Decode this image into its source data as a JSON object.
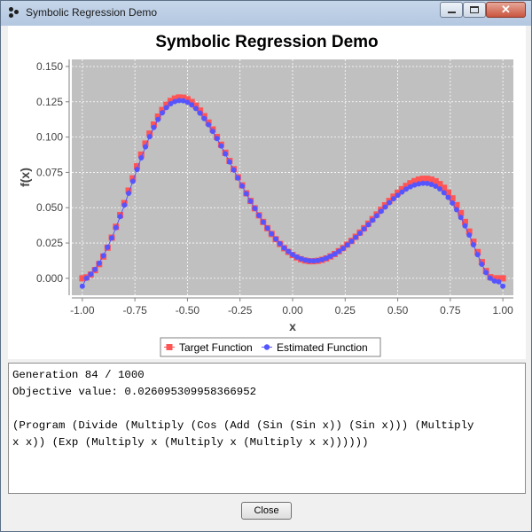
{
  "window": {
    "title": "Symbolic Regression Demo"
  },
  "chart_data": {
    "type": "scatter",
    "title": "Symbolic Regression Demo",
    "xlabel": "x",
    "ylabel": "f(x)",
    "xlim": [
      -1.05,
      1.05
    ],
    "ylim": [
      -0.012,
      0.155
    ],
    "xticks": [
      "-1.00",
      "-0.75",
      "-0.50",
      "-0.25",
      "0.00",
      "0.25",
      "0.50",
      "0.75",
      "1.00"
    ],
    "yticks": [
      "0.000",
      "0.025",
      "0.050",
      "0.075",
      "0.100",
      "0.125",
      "0.150"
    ],
    "grid": true,
    "legend_position": "bottom",
    "series": [
      {
        "name": "Target Function",
        "color": "#ff5555",
        "marker": "square",
        "x": [
          -1.0,
          -0.98,
          -0.96,
          -0.94,
          -0.92,
          -0.9,
          -0.88,
          -0.86,
          -0.84,
          -0.82,
          -0.8,
          -0.78,
          -0.76,
          -0.74,
          -0.72,
          -0.7,
          -0.68,
          -0.66,
          -0.64,
          -0.62,
          -0.6,
          -0.58,
          -0.56,
          -0.54,
          -0.52,
          -0.5,
          -0.48,
          -0.46,
          -0.44,
          -0.42,
          -0.4,
          -0.38,
          -0.36,
          -0.34,
          -0.32,
          -0.3,
          -0.28,
          -0.26,
          -0.24,
          -0.22,
          -0.2,
          -0.18,
          -0.16,
          -0.14,
          -0.12,
          -0.1,
          -0.08,
          -0.06,
          -0.04,
          -0.02,
          0.0,
          0.02,
          0.04,
          0.06,
          0.08,
          0.1,
          0.12,
          0.14,
          0.16,
          0.18,
          0.2,
          0.22,
          0.24,
          0.26,
          0.28,
          0.3,
          0.32,
          0.34,
          0.36,
          0.38,
          0.4,
          0.42,
          0.44,
          0.46,
          0.48,
          0.5,
          0.52,
          0.54,
          0.56,
          0.58,
          0.6,
          0.62,
          0.64,
          0.66,
          0.68,
          0.7,
          0.72,
          0.74,
          0.76,
          0.78,
          0.8,
          0.82,
          0.84,
          0.86,
          0.88,
          0.9,
          0.92,
          0.94,
          0.96,
          0.98,
          1.0
        ],
        "y": [
          0.0,
          0.0007,
          0.0026,
          0.0058,
          0.0101,
          0.0154,
          0.0217,
          0.0288,
          0.0365,
          0.0448,
          0.0533,
          0.0621,
          0.0708,
          0.0794,
          0.0876,
          0.0954,
          0.1025,
          0.1089,
          0.1145,
          0.1192,
          0.1229,
          0.1256,
          0.1273,
          0.1281,
          0.1279,
          0.1268,
          0.1249,
          0.1222,
          0.1188,
          0.1148,
          0.1103,
          0.1054,
          0.1001,
          0.0946,
          0.0889,
          0.0831,
          0.0773,
          0.0715,
          0.0658,
          0.0602,
          0.0548,
          0.0496,
          0.0446,
          0.0399,
          0.0355,
          0.0314,
          0.0277,
          0.0243,
          0.0213,
          0.0187,
          0.0165,
          0.0148,
          0.0135,
          0.0126,
          0.0121,
          0.0121,
          0.0124,
          0.0131,
          0.0141,
          0.0155,
          0.0172,
          0.0192,
          0.0214,
          0.0239,
          0.0265,
          0.0294,
          0.0324,
          0.0355,
          0.0387,
          0.0419,
          0.0452,
          0.0485,
          0.0517,
          0.0548,
          0.0578,
          0.0606,
          0.0631,
          0.0654,
          0.0673,
          0.0688,
          0.0699,
          0.0705,
          0.0705,
          0.0699,
          0.0687,
          0.0667,
          0.0641,
          0.0607,
          0.0566,
          0.0518,
          0.0462,
          0.0399,
          0.0331,
          0.0259,
          0.0186,
          0.0115,
          0.0052,
          0.0008,
          0.0,
          0.0,
          0.0
        ]
      },
      {
        "name": "Estimated Function",
        "color": "#5555ff",
        "marker": "circle",
        "x": [
          -1.0,
          -0.98,
          -0.96,
          -0.94,
          -0.92,
          -0.9,
          -0.88,
          -0.86,
          -0.84,
          -0.82,
          -0.8,
          -0.78,
          -0.76,
          -0.74,
          -0.72,
          -0.7,
          -0.68,
          -0.66,
          -0.64,
          -0.62,
          -0.6,
          -0.58,
          -0.56,
          -0.54,
          -0.52,
          -0.5,
          -0.48,
          -0.46,
          -0.44,
          -0.42,
          -0.4,
          -0.38,
          -0.36,
          -0.34,
          -0.32,
          -0.3,
          -0.28,
          -0.26,
          -0.24,
          -0.22,
          -0.2,
          -0.18,
          -0.16,
          -0.14,
          -0.12,
          -0.1,
          -0.08,
          -0.06,
          -0.04,
          -0.02,
          0.0,
          0.02,
          0.04,
          0.06,
          0.08,
          0.1,
          0.12,
          0.14,
          0.16,
          0.18,
          0.2,
          0.22,
          0.24,
          0.26,
          0.28,
          0.3,
          0.32,
          0.34,
          0.36,
          0.38,
          0.4,
          0.42,
          0.44,
          0.46,
          0.48,
          0.5,
          0.52,
          0.54,
          0.56,
          0.58,
          0.6,
          0.62,
          0.64,
          0.66,
          0.68,
          0.7,
          0.72,
          0.74,
          0.76,
          0.78,
          0.8,
          0.82,
          0.84,
          0.86,
          0.88,
          0.9,
          0.92,
          0.94,
          0.96,
          0.98,
          1.0
        ],
        "y": [
          -0.0056,
          0.0001,
          0.0029,
          0.0063,
          0.0107,
          0.016,
          0.022,
          0.0286,
          0.0359,
          0.0437,
          0.0518,
          0.0602,
          0.0687,
          0.0771,
          0.0853,
          0.0931,
          0.1003,
          0.1068,
          0.1125,
          0.1172,
          0.1209,
          0.1236,
          0.1252,
          0.1259,
          0.1257,
          0.1246,
          0.1228,
          0.1202,
          0.1169,
          0.1131,
          0.1088,
          0.1041,
          0.099,
          0.0937,
          0.0881,
          0.0824,
          0.0767,
          0.071,
          0.0654,
          0.0599,
          0.0546,
          0.0495,
          0.0445,
          0.0398,
          0.0355,
          0.0315,
          0.0278,
          0.0245,
          0.0215,
          0.019,
          0.0168,
          0.0151,
          0.0138,
          0.0129,
          0.0124,
          0.0123,
          0.0126,
          0.0132,
          0.0142,
          0.0156,
          0.0172,
          0.0191,
          0.0212,
          0.0236,
          0.0262,
          0.029,
          0.0319,
          0.0349,
          0.038,
          0.0411,
          0.0443,
          0.0474,
          0.0505,
          0.0535,
          0.0563,
          0.0588,
          0.0611,
          0.0632,
          0.0648,
          0.0661,
          0.0669,
          0.0673,
          0.0672,
          0.0665,
          0.0652,
          0.0633,
          0.0606,
          0.0573,
          0.0533,
          0.0486,
          0.0431,
          0.0371,
          0.0306,
          0.0237,
          0.0167,
          0.01,
          0.0041,
          0.0001,
          -0.0019,
          -0.0024,
          -0.0056
        ]
      }
    ]
  },
  "output": {
    "lines": [
      "Generation 84 / 1000",
      "Objective value: 0.026095309958366952",
      "",
      "(Program (Divide (Multiply (Cos (Add (Sin (Sin x)) (Sin x))) (Multiply",
      "x x)) (Exp (Multiply x (Multiply x (Multiply x x))))))"
    ]
  },
  "buttons": {
    "close_label": "Close"
  }
}
